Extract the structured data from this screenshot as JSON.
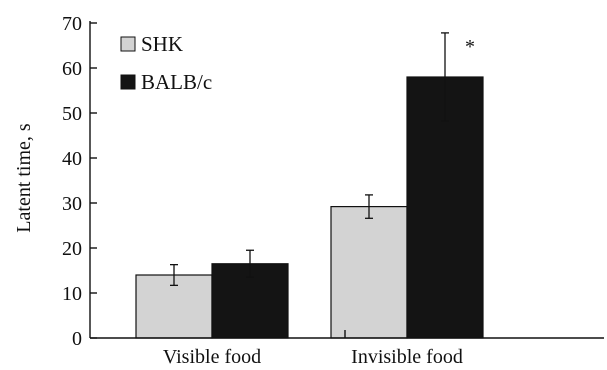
{
  "chart_data": {
    "type": "bar",
    "title": "",
    "xlabel": "",
    "ylabel": "Latent time, s",
    "ylim": [
      0,
      70
    ],
    "yticks": [
      0,
      10,
      20,
      30,
      40,
      50,
      60,
      70
    ],
    "categories": [
      "Visible food",
      "Invisible food"
    ],
    "series": [
      {
        "name": "SHK",
        "values": [
          14,
          29.2
        ],
        "errors": [
          2.3,
          2.6
        ],
        "color": "#d3d3d3"
      },
      {
        "name": "BALB/c",
        "values": [
          16.5,
          58
        ],
        "errors": [
          3,
          9.8
        ],
        "color": "#141414"
      }
    ],
    "annotations": [
      {
        "text": "*",
        "category": "Invisible food",
        "series": "BALB/c"
      }
    ],
    "legend": {
      "placement": "top-left"
    },
    "grid": false
  }
}
